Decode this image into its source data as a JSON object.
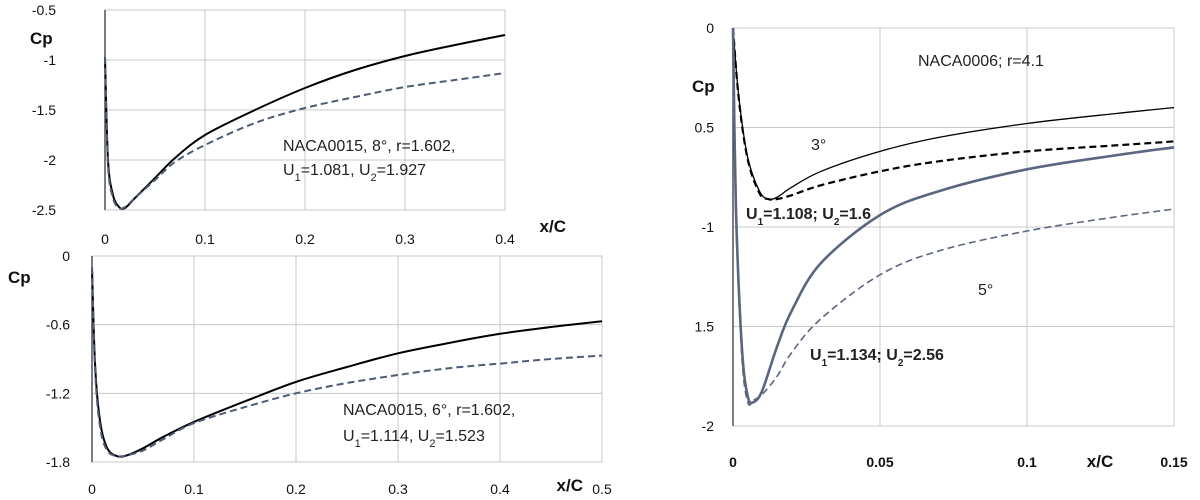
{
  "chart_data": [
    {
      "id": "top-left",
      "type": "line",
      "ylabel": "Cp",
      "xlabel": "x/C",
      "xlim": [
        0,
        0.4
      ],
      "ylim": [
        -2.5,
        -0.5
      ],
      "xticks": [
        0,
        0.1,
        0.2,
        0.3,
        0.4
      ],
      "xtick_labels": [
        "0",
        "0.1",
        "0.2",
        "0.3",
        "0.4"
      ],
      "yticks": [
        -0.5,
        -1,
        -1.5,
        -2,
        -2.5
      ],
      "ytick_labels": [
        "-0.5",
        "-1",
        "-1.5",
        "-2",
        "-2.5"
      ],
      "grid": true,
      "annotations": [
        "NACA0015, 8°, r=1.602,",
        "U1=1.081, U2=1.927"
      ],
      "series": [
        {
          "style": "solid",
          "color": "#000000",
          "x": [
            0,
            0.003,
            0.008,
            0.014,
            0.02,
            0.03,
            0.05,
            0.07,
            0.1,
            0.15,
            0.2,
            0.25,
            0.3,
            0.35,
            0.4
          ],
          "y": [
            -0.97,
            -2.0,
            -2.35,
            -2.47,
            -2.48,
            -2.38,
            -2.18,
            -1.98,
            -1.75,
            -1.5,
            -1.28,
            -1.1,
            -0.96,
            -0.85,
            -0.75
          ]
        },
        {
          "style": "dashed",
          "color": "#4e5b78",
          "x": [
            0,
            0.003,
            0.008,
            0.014,
            0.02,
            0.03,
            0.05,
            0.07,
            0.1,
            0.15,
            0.2,
            0.25,
            0.3,
            0.35,
            0.4
          ],
          "y": [
            -0.97,
            -2.05,
            -2.38,
            -2.48,
            -2.47,
            -2.38,
            -2.2,
            -2.02,
            -1.85,
            -1.63,
            -1.48,
            -1.37,
            -1.27,
            -1.2,
            -1.13
          ]
        }
      ]
    },
    {
      "id": "bottom-left",
      "type": "line",
      "ylabel": "Cp",
      "xlabel": "x/C",
      "xlim": [
        0,
        0.5
      ],
      "ylim": [
        -1.8,
        0
      ],
      "xticks": [
        0,
        0.1,
        0.2,
        0.3,
        0.4,
        0.5
      ],
      "xtick_labels": [
        "0",
        "0.1",
        "0.2",
        "0.3",
        "0.4",
        "0.5"
      ],
      "yticks": [
        0,
        -0.6,
        -1.2,
        -1.8
      ],
      "ytick_labels": [
        "0",
        "-0.6",
        "-1.2",
        "-1.8"
      ],
      "grid": true,
      "annotations": [
        "NACA0015, 6°, r=1.602,",
        "U1=1.114, U2=1.523"
      ],
      "series": [
        {
          "style": "solid",
          "color": "#000000",
          "x": [
            0,
            0.003,
            0.008,
            0.015,
            0.025,
            0.035,
            0.05,
            0.07,
            0.1,
            0.15,
            0.2,
            0.25,
            0.3,
            0.35,
            0.4,
            0.45,
            0.5
          ],
          "y": [
            -0.1,
            -0.95,
            -1.45,
            -1.68,
            -1.75,
            -1.74,
            -1.68,
            -1.58,
            -1.45,
            -1.27,
            -1.1,
            -0.97,
            -0.85,
            -0.76,
            -0.68,
            -0.62,
            -0.57
          ]
        },
        {
          "style": "dashed",
          "color": "#4e5b78",
          "x": [
            0,
            0.003,
            0.008,
            0.015,
            0.025,
            0.035,
            0.05,
            0.07,
            0.1,
            0.15,
            0.2,
            0.25,
            0.3,
            0.35,
            0.4,
            0.45,
            0.5
          ],
          "y": [
            -0.1,
            -1.0,
            -1.5,
            -1.7,
            -1.75,
            -1.74,
            -1.7,
            -1.6,
            -1.46,
            -1.32,
            -1.2,
            -1.11,
            -1.04,
            -0.98,
            -0.94,
            -0.9,
            -0.87
          ]
        }
      ]
    },
    {
      "id": "right",
      "type": "line",
      "ylabel": "Cp",
      "xlabel": "x/C",
      "xlim": [
        0,
        0.15
      ],
      "ylim": [
        0,
        2
      ],
      "y_inverted": true,
      "xticks": [
        0,
        0.05,
        0.1,
        0.15
      ],
      "xtick_labels": [
        "0",
        "0.05",
        "0.1",
        "0.15"
      ],
      "yticks": [
        0,
        0.5,
        1,
        1.5,
        2
      ],
      "ytick_labels": [
        "0",
        "0.5",
        "-1",
        "1.5",
        "-2"
      ],
      "grid": true,
      "annotations": [
        "NACA0006; r=4.1",
        "3°",
        "U1=1.108; U2=1.6",
        "5°",
        "U1=1.134; U2=2.56"
      ],
      "series": [
        {
          "style": "solid",
          "color": "#000000",
          "width": 1.3,
          "x": [
            0,
            0.002,
            0.005,
            0.009,
            0.012,
            0.015,
            0.02,
            0.03,
            0.05,
            0.07,
            0.1,
            0.13,
            0.15
          ],
          "y": [
            0.0,
            0.35,
            0.65,
            0.82,
            0.86,
            0.85,
            0.8,
            0.72,
            0.62,
            0.55,
            0.48,
            0.43,
            0.4
          ]
        },
        {
          "style": "dashed",
          "color": "#000000",
          "width": 2.2,
          "x": [
            0,
            0.002,
            0.005,
            0.009,
            0.012,
            0.015,
            0.02,
            0.03,
            0.05,
            0.07,
            0.1,
            0.13,
            0.15
          ],
          "y": [
            0.0,
            0.36,
            0.66,
            0.83,
            0.86,
            0.86,
            0.84,
            0.79,
            0.72,
            0.67,
            0.62,
            0.59,
            0.57
          ]
        },
        {
          "style": "solid",
          "color": "#5a667f",
          "width": 2.6,
          "x": [
            0,
            0.001,
            0.003,
            0.005,
            0.007,
            0.01,
            0.015,
            0.02,
            0.03,
            0.05,
            0.07,
            0.1,
            0.13,
            0.15
          ],
          "y": [
            0.0,
            0.9,
            1.6,
            1.85,
            1.88,
            1.82,
            1.6,
            1.42,
            1.18,
            0.94,
            0.82,
            0.71,
            0.64,
            0.6
          ]
        },
        {
          "style": "dashed",
          "color": "#5a667f",
          "width": 1.6,
          "x": [
            0,
            0.001,
            0.003,
            0.005,
            0.007,
            0.01,
            0.015,
            0.02,
            0.03,
            0.05,
            0.07,
            0.1,
            0.13,
            0.15
          ],
          "y": [
            0.0,
            0.95,
            1.65,
            1.88,
            1.87,
            1.84,
            1.75,
            1.63,
            1.46,
            1.24,
            1.12,
            1.02,
            0.95,
            0.91
          ]
        }
      ]
    }
  ]
}
